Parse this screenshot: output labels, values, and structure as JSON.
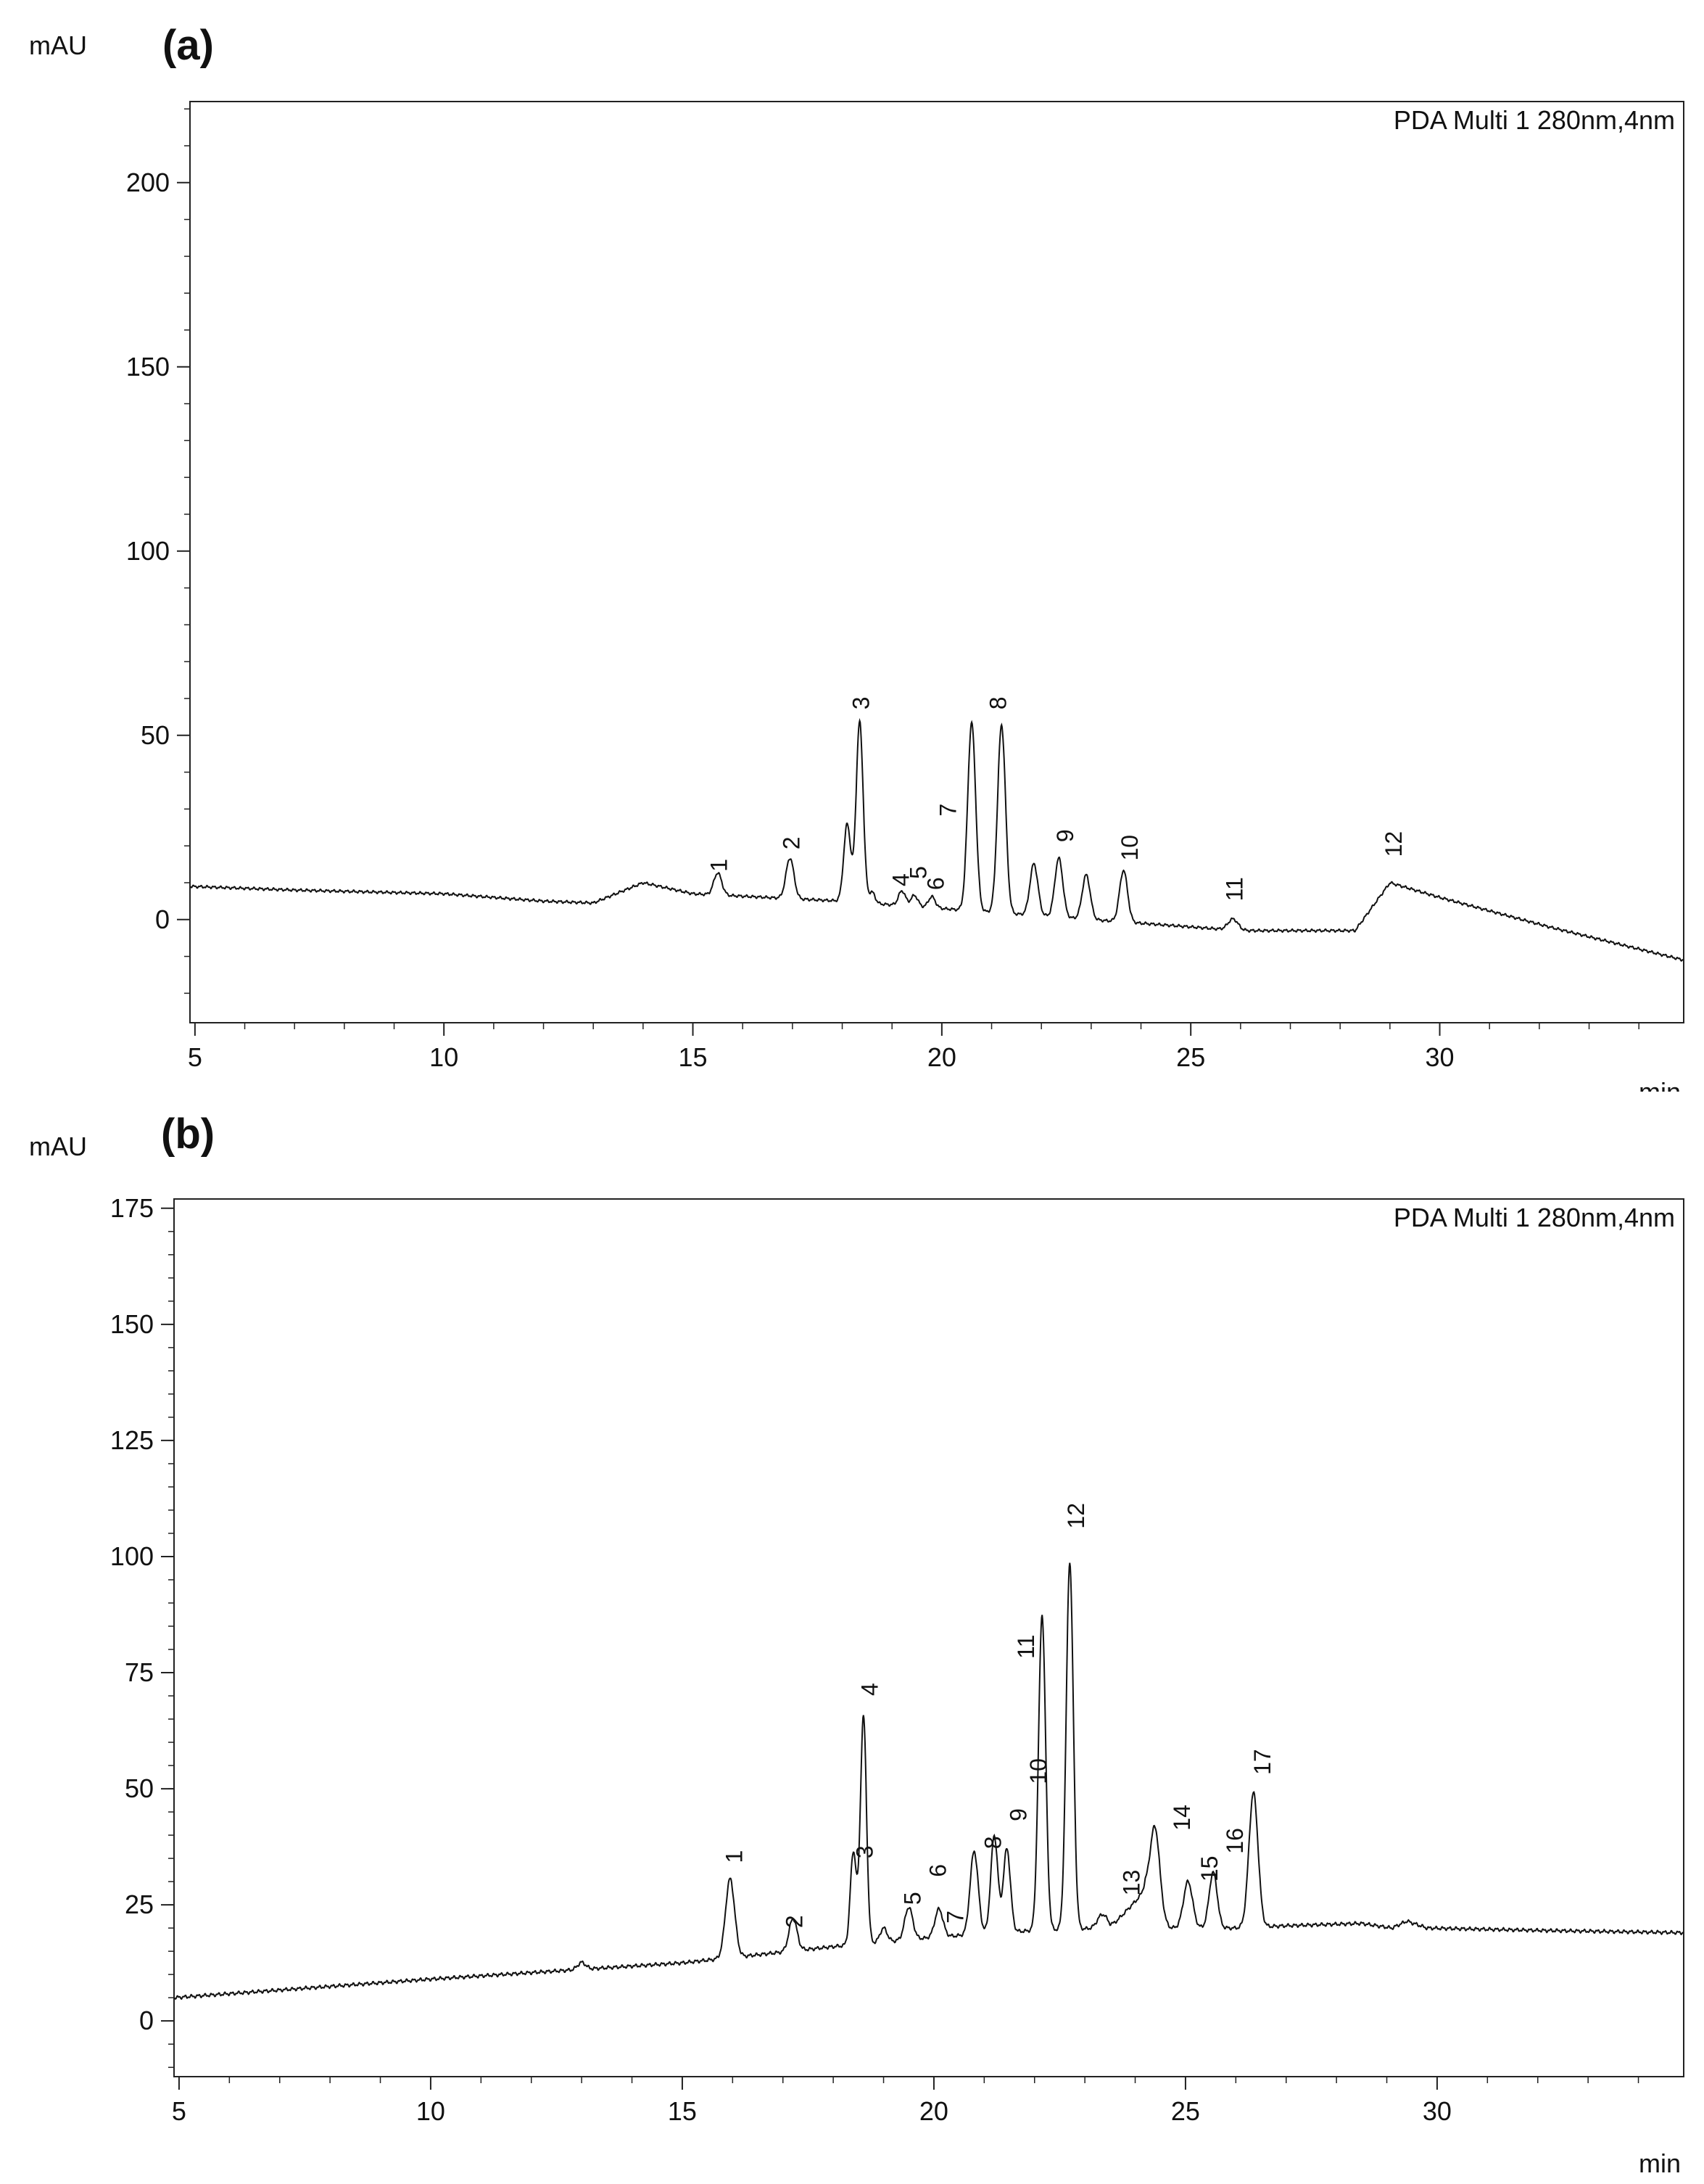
{
  "chart_data": [
    {
      "type": "line",
      "panel_label": "(a)",
      "ylabel": "mAU",
      "xlabel": "min",
      "legend": "PDA Multi 1 280nm,4nm",
      "xlim": [
        4.9,
        34.9
      ],
      "ylim": [
        -28,
        222
      ],
      "xticks": [
        5,
        10,
        15,
        20,
        25,
        30
      ],
      "yticks": [
        0,
        50,
        100,
        150,
        200
      ],
      "baseline_points": [
        [
          4.9,
          9
        ],
        [
          7,
          8
        ],
        [
          10,
          7
        ],
        [
          12,
          5
        ],
        [
          13,
          4.5
        ],
        [
          14,
          10
        ],
        [
          15,
          7
        ],
        [
          18,
          5
        ],
        [
          20,
          3
        ],
        [
          22,
          1
        ],
        [
          24,
          -1
        ],
        [
          26,
          -3
        ],
        [
          28.3,
          -3
        ],
        [
          29,
          10
        ],
        [
          30,
          6
        ],
        [
          32.2,
          -2
        ],
        [
          34.9,
          -11
        ]
      ],
      "bumps": [
        [
          15.5,
          6,
          0.08
        ],
        [
          16.95,
          11,
          0.08
        ],
        [
          18.1,
          21,
          0.07
        ],
        [
          18.35,
          49,
          0.07
        ],
        [
          18.6,
          3,
          0.06
        ],
        [
          19.2,
          4,
          0.07
        ],
        [
          19.45,
          3,
          0.07
        ],
        [
          19.8,
          3,
          0.07
        ],
        [
          20.6,
          51,
          0.08
        ],
        [
          21.2,
          51,
          0.08
        ],
        [
          21.85,
          14,
          0.08
        ],
        [
          22.35,
          16,
          0.08
        ],
        [
          22.9,
          12,
          0.08
        ],
        [
          23.65,
          14,
          0.08
        ],
        [
          25.85,
          3,
          0.1
        ]
      ],
      "peak_labels": [
        {
          "label": "1",
          "t": 15.6,
          "y": 13
        },
        {
          "label": "2",
          "t": 17.05,
          "y": 19
        },
        {
          "label": "3",
          "t": 18.45,
          "y": 57
        },
        {
          "label": "4",
          "t": 19.25,
          "y": 9
        },
        {
          "label": "5",
          "t": 19.6,
          "y": 11
        },
        {
          "label": "6",
          "t": 19.95,
          "y": 8
        },
        {
          "label": "7",
          "t": 20.2,
          "y": 28
        },
        {
          "label": "8",
          "t": 21.2,
          "y": 57
        },
        {
          "label": "9",
          "t": 22.55,
          "y": 21
        },
        {
          "label": "10",
          "t": 23.85,
          "y": 16
        },
        {
          "label": "11",
          "t": 25.95,
          "y": 5
        },
        {
          "label": "12",
          "t": 29.15,
          "y": 17
        }
      ]
    },
    {
      "type": "line",
      "panel_label": "(b)",
      "ylabel": "mAU",
      "xlabel": "min",
      "legend": "PDA Multi 1 280nm,4nm",
      "xlim": [
        4.9,
        34.9
      ],
      "ylim": [
        -12,
        177
      ],
      "xticks": [
        5,
        10,
        15,
        20,
        25,
        30
      ],
      "yticks": [
        0,
        25,
        50,
        75,
        100,
        125,
        150,
        175
      ],
      "baseline_points": [
        [
          4.9,
          5
        ],
        [
          10,
          9
        ],
        [
          15,
          12.5
        ],
        [
          18,
          16
        ],
        [
          20,
          18
        ],
        [
          22,
          19.5
        ],
        [
          23.5,
          20
        ],
        [
          24.2,
          28
        ],
        [
          24.5,
          20
        ],
        [
          26,
          20
        ],
        [
          27,
          20.5
        ],
        [
          28.5,
          21
        ],
        [
          29.1,
          20
        ],
        [
          29.4,
          21.5
        ],
        [
          29.8,
          20
        ],
        [
          32,
          19.5
        ],
        [
          34.9,
          19
        ]
      ],
      "bumps": [
        [
          13.0,
          1.5,
          0.08
        ],
        [
          15.95,
          17,
          0.09
        ],
        [
          17.2,
          7,
          0.08
        ],
        [
          18.4,
          20,
          0.06
        ],
        [
          18.6,
          49,
          0.06
        ],
        [
          19.0,
          3,
          0.07
        ],
        [
          19.5,
          7,
          0.08
        ],
        [
          20.1,
          6,
          0.08
        ],
        [
          20.8,
          18,
          0.08
        ],
        [
          21.2,
          21,
          0.07
        ],
        [
          21.45,
          18,
          0.07
        ],
        [
          22.15,
          68,
          0.07
        ],
        [
          22.7,
          79,
          0.07
        ],
        [
          23.35,
          3,
          0.1
        ],
        [
          24.4,
          19,
          0.1
        ],
        [
          25.05,
          10,
          0.09
        ],
        [
          25.55,
          12,
          0.08
        ],
        [
          26.35,
          29,
          0.09
        ]
      ],
      "peak_labels": [
        {
          "label": "1",
          "t": 16.1,
          "y": 34
        },
        {
          "label": "2",
          "t": 17.3,
          "y": 20
        },
        {
          "label": "3",
          "t": 18.7,
          "y": 35
        },
        {
          "label": "4",
          "t": 18.8,
          "y": 70
        },
        {
          "label": "5",
          "t": 19.65,
          "y": 25
        },
        {
          "label": "6",
          "t": 20.15,
          "y": 31
        },
        {
          "label": "7",
          "t": 20.5,
          "y": 21
        },
        {
          "label": "8",
          "t": 21.25,
          "y": 37
        },
        {
          "label": "9",
          "t": 21.75,
          "y": 43
        },
        {
          "label": "10",
          "t": 22.15,
          "y": 51
        },
        {
          "label": "11",
          "t": 21.9,
          "y": 78
        },
        {
          "label": "12",
          "t": 22.9,
          "y": 106
        },
        {
          "label": "13",
          "t": 24.0,
          "y": 27
        },
        {
          "label": "14",
          "t": 25.0,
          "y": 41
        },
        {
          "label": "15",
          "t": 25.55,
          "y": 30
        },
        {
          "label": "16",
          "t": 26.05,
          "y": 36
        },
        {
          "label": "17",
          "t": 26.6,
          "y": 53
        }
      ]
    }
  ]
}
